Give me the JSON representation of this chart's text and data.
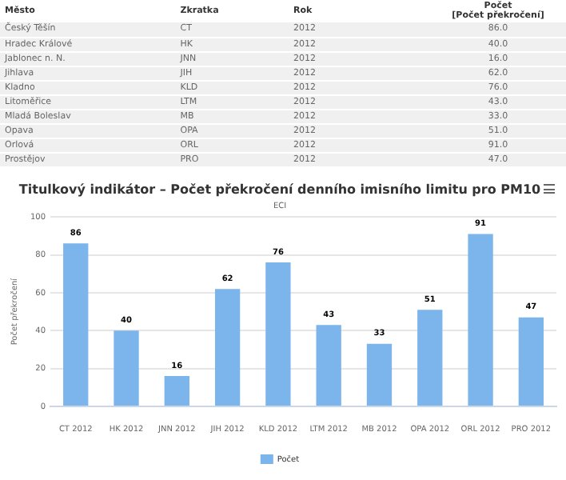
{
  "chart_data": [
    {
      "type": "other",
      "annotations": [
        "Město",
        "Zkratka",
        "Rok",
        "Počet\n[Počet překročení]",
        "Český Těšín",
        "CT",
        "2012",
        "86.0",
        "Hradec Králové",
        "HK",
        "2012",
        "40.0",
        "Jablonec n. N.",
        "JNN",
        "2012",
        "16.0",
        "Jihlava",
        "JIH",
        "2012",
        "62.0",
        "Kladno",
        "KLD",
        "2012",
        "76.0",
        "Litoměřice",
        "LTM",
        "2012",
        "43.0",
        "Mladá Boleslav",
        "MB",
        "2012",
        "33.0",
        "Opava",
        "OPA",
        "2012",
        "51.0",
        "Orlová",
        "ORL",
        "2012",
        "91.0",
        "Prostějov",
        "PRO",
        "2012",
        "47.0"
      ]
    },
    {
      "type": "bar",
      "title": "Titulkový indikátor – Počet překročení denního imisního limitu pro PM10",
      "subtitle": "ECI",
      "ylabel": "Počet překročení",
      "categories": [
        "CT 2012",
        "HK 2012",
        "JNN 2012",
        "JIH 2012",
        "KLD 2012",
        "LTM 2012",
        "MB 2012",
        "OPA 2012",
        "ORL 2012",
        "PRO 2012"
      ],
      "series": [
        {
          "name": "Počet",
          "color": "#7cb5ec",
          "values": [
            86,
            40,
            16,
            62,
            76,
            43,
            33,
            51,
            91,
            47
          ]
        }
      ],
      "ylim": [
        0,
        100
      ],
      "yticks": [
        0,
        20,
        40,
        60,
        80,
        100
      ],
      "grid": "y",
      "legend": "bottom",
      "data_labels": true
    }
  ]
}
